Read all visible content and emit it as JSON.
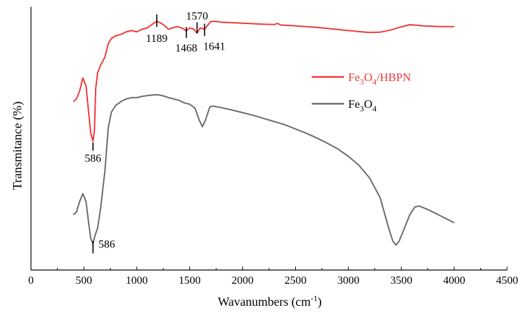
{
  "chart_data": {
    "type": "line",
    "xlabel": "Wavanumbers (cm",
    "xlabel_sup": "-1",
    "xlabel_close": ")",
    "ylabel": "Transmitance (%)",
    "xlim": [
      0,
      4500
    ],
    "ylim": [
      0,
      100
    ],
    "xticks": [
      0,
      500,
      1000,
      1500,
      2000,
      2500,
      3000,
      3500,
      4000,
      4500
    ],
    "yticks_labeled": false,
    "grid": false,
    "legend_position": "right",
    "series": [
      {
        "name": "Fe3O4/HBPN",
        "name_parts": {
          "a": "Fe",
          "s1": "3",
          "b": "O",
          "s2": "4",
          "c": "/HBPN"
        },
        "color": "#ee3a3a",
        "points": [
          [
            400,
            64
          ],
          [
            430,
            65
          ],
          [
            460,
            68
          ],
          [
            490,
            73
          ],
          [
            520,
            70
          ],
          [
            545,
            60
          ],
          [
            565,
            52
          ],
          [
            586,
            49
          ],
          [
            600,
            53
          ],
          [
            612,
            69
          ],
          [
            630,
            75
          ],
          [
            660,
            78
          ],
          [
            700,
            81
          ],
          [
            730,
            86
          ],
          [
            760,
            88
          ],
          [
            800,
            89
          ],
          [
            850,
            89.5
          ],
          [
            900,
            90.5
          ],
          [
            950,
            91
          ],
          [
            1000,
            90.5
          ],
          [
            1050,
            91.5
          ],
          [
            1100,
            92
          ],
          [
            1150,
            93.5
          ],
          [
            1189,
            94.5
          ],
          [
            1220,
            94
          ],
          [
            1260,
            93
          ],
          [
            1300,
            91.5
          ],
          [
            1340,
            92
          ],
          [
            1380,
            92.5
          ],
          [
            1420,
            92
          ],
          [
            1450,
            91.5
          ],
          [
            1468,
            90.8
          ],
          [
            1500,
            92
          ],
          [
            1540,
            91.5
          ],
          [
            1570,
            90
          ],
          [
            1600,
            92
          ],
          [
            1641,
            91.5
          ],
          [
            1670,
            93
          ],
          [
            1700,
            94.5
          ],
          [
            1750,
            94.5
          ],
          [
            1800,
            94.2
          ],
          [
            1900,
            94
          ],
          [
            2000,
            93.8
          ],
          [
            2100,
            93.6
          ],
          [
            2200,
            93.4
          ],
          [
            2300,
            93.3
          ],
          [
            2330,
            93.7
          ],
          [
            2360,
            93.1
          ],
          [
            2400,
            93
          ],
          [
            2500,
            92.8
          ],
          [
            2600,
            92.5
          ],
          [
            2700,
            92.2
          ],
          [
            2800,
            91.8
          ],
          [
            2900,
            91.4
          ],
          [
            3000,
            91
          ],
          [
            3100,
            90.6
          ],
          [
            3200,
            90.3
          ],
          [
            3300,
            90.4
          ],
          [
            3400,
            91.2
          ],
          [
            3500,
            92.4
          ],
          [
            3580,
            93.2
          ],
          [
            3650,
            93
          ],
          [
            3700,
            92.8
          ],
          [
            3800,
            92.6
          ],
          [
            3900,
            92.5
          ],
          [
            4000,
            92.5
          ]
        ]
      },
      {
        "name": "Fe3O4",
        "name_parts": {
          "a": "Fe",
          "s1": "3",
          "b": "O",
          "s2": "4",
          "c": ""
        },
        "color": "#6b6b6b",
        "points": [
          [
            400,
            21
          ],
          [
            430,
            22
          ],
          [
            460,
            26
          ],
          [
            490,
            29
          ],
          [
            520,
            26
          ],
          [
            545,
            18
          ],
          [
            565,
            12
          ],
          [
            586,
            10
          ],
          [
            605,
            13
          ],
          [
            630,
            16
          ],
          [
            660,
            24
          ],
          [
            700,
            38
          ],
          [
            730,
            54
          ],
          [
            760,
            60
          ],
          [
            800,
            62.5
          ],
          [
            850,
            64
          ],
          [
            900,
            65
          ],
          [
            950,
            65.5
          ],
          [
            1000,
            65.5
          ],
          [
            1050,
            66
          ],
          [
            1100,
            66.3
          ],
          [
            1150,
            66.5
          ],
          [
            1200,
            66.6
          ],
          [
            1250,
            66.2
          ],
          [
            1300,
            65.5
          ],
          [
            1350,
            65
          ],
          [
            1400,
            64.5
          ],
          [
            1450,
            63.5
          ],
          [
            1500,
            63
          ],
          [
            1550,
            61.5
          ],
          [
            1590,
            57
          ],
          [
            1620,
            54.5
          ],
          [
            1650,
            57
          ],
          [
            1690,
            62
          ],
          [
            1720,
            62.3
          ],
          [
            1800,
            61.7
          ],
          [
            1900,
            60.8
          ],
          [
            2000,
            59.8
          ],
          [
            2100,
            58.8
          ],
          [
            2200,
            57.6
          ],
          [
            2300,
            56.4
          ],
          [
            2350,
            55.8
          ],
          [
            2400,
            55.2
          ],
          [
            2500,
            53.6
          ],
          [
            2600,
            52
          ],
          [
            2700,
            50.2
          ],
          [
            2800,
            48.2
          ],
          [
            2900,
            46
          ],
          [
            3000,
            43.2
          ],
          [
            3100,
            39.8
          ],
          [
            3200,
            35
          ],
          [
            3300,
            27.5
          ],
          [
            3380,
            16
          ],
          [
            3420,
            11
          ],
          [
            3450,
            9.5
          ],
          [
            3480,
            11
          ],
          [
            3520,
            15
          ],
          [
            3580,
            21
          ],
          [
            3630,
            24
          ],
          [
            3670,
            24.3
          ],
          [
            3750,
            23
          ],
          [
            3800,
            22
          ],
          [
            3900,
            20
          ],
          [
            4000,
            18
          ]
        ]
      }
    ],
    "annotations": [
      {
        "label": "586",
        "series": 0
      },
      {
        "label": "1189",
        "series": 0
      },
      {
        "label": "1570",
        "series": 0
      },
      {
        "label": "1468",
        "series": 0
      },
      {
        "label": "1641",
        "series": 0
      },
      {
        "label": "586",
        "series": 1
      }
    ]
  }
}
